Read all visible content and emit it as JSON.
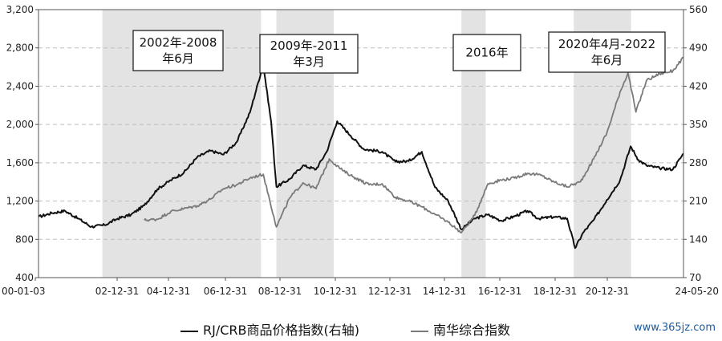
{
  "chart_data": {
    "type": "line",
    "x_tick_labels": [
      "00-01-03",
      "02-12-31",
      "04-12-31",
      "06-12-31",
      "08-12-31",
      "10-12-31",
      "12-12-31",
      "14-12-31",
      "16-12-31",
      "18-12-31",
      "20-12-31",
      "24-05-20"
    ],
    "y_left": {
      "ticks": [
        "400",
        "800",
        "1,200",
        "1,600",
        "2,000",
        "2,400",
        "2,800",
        "3,200"
      ],
      "min": 400,
      "max": 3200
    },
    "y_right": {
      "ticks": [
        "70",
        "140",
        "210",
        "280",
        "350",
        "420",
        "490",
        "560"
      ],
      "min": 70,
      "max": 560
    },
    "shaded_periods": [
      {
        "label": [
          "2002年-2008",
          "年6月"
        ],
        "start": "2002-06",
        "end": "2008-06"
      },
      {
        "label": [
          "2009年-2011",
          "年3月"
        ],
        "start": "2009-01",
        "end": "2011-03"
      },
      {
        "label": [
          "2016年"
        ],
        "start": "2016-01",
        "end": "2016-12"
      },
      {
        "label": [
          "2020年4月-2022",
          "年6月"
        ],
        "start": "2020-04",
        "end": "2022-06"
      }
    ],
    "series": [
      {
        "name": "RJ/CRB商品价格指数(右轴)",
        "axis": "right",
        "color": "#111111",
        "points": [
          [
            2000.0,
            181
          ],
          [
            2000.5,
            188
          ],
          [
            2001.0,
            192
          ],
          [
            2001.5,
            178
          ],
          [
            2002.0,
            163
          ],
          [
            2002.5,
            166
          ],
          [
            2003.0,
            178
          ],
          [
            2003.5,
            185
          ],
          [
            2004.0,
            202
          ],
          [
            2004.5,
            232
          ],
          [
            2005.0,
            248
          ],
          [
            2005.5,
            262
          ],
          [
            2006.0,
            290
          ],
          [
            2006.5,
            302
          ],
          [
            2007.0,
            295
          ],
          [
            2007.5,
            318
          ],
          [
            2008.0,
            372
          ],
          [
            2008.5,
            460
          ],
          [
            2008.8,
            355
          ],
          [
            2009.0,
            236
          ],
          [
            2009.5,
            250
          ],
          [
            2010.0,
            275
          ],
          [
            2010.5,
            268
          ],
          [
            2010.9,
            300
          ],
          [
            2011.3,
            356
          ],
          [
            2011.8,
            330
          ],
          [
            2012.3,
            305
          ],
          [
            2013.0,
            300
          ],
          [
            2013.5,
            282
          ],
          [
            2014.0,
            283
          ],
          [
            2014.5,
            300
          ],
          [
            2015.0,
            235
          ],
          [
            2015.5,
            210
          ],
          [
            2016.0,
            158
          ],
          [
            2016.5,
            178
          ],
          [
            2017.0,
            185
          ],
          [
            2017.5,
            174
          ],
          [
            2018.0,
            182
          ],
          [
            2018.5,
            192
          ],
          [
            2018.9,
            178
          ],
          [
            2019.5,
            181
          ],
          [
            2020.0,
            178
          ],
          [
            2020.3,
            124
          ],
          [
            2020.6,
            152
          ],
          [
            2021.0,
            175
          ],
          [
            2021.5,
            212
          ],
          [
            2022.0,
            248
          ],
          [
            2022.4,
            310
          ],
          [
            2022.7,
            285
          ],
          [
            2023.0,
            275
          ],
          [
            2023.5,
            270
          ],
          [
            2024.0,
            268
          ],
          [
            2024.4,
            297
          ]
        ]
      },
      {
        "name": "南华综合指数",
        "axis": "left",
        "color": "#7a7a7a",
        "points": [
          [
            2004.0,
            1000
          ],
          [
            2004.5,
            1010
          ],
          [
            2005.0,
            1090
          ],
          [
            2005.5,
            1120
          ],
          [
            2006.0,
            1150
          ],
          [
            2006.5,
            1220
          ],
          [
            2007.0,
            1330
          ],
          [
            2007.5,
            1370
          ],
          [
            2008.0,
            1440
          ],
          [
            2008.5,
            1480
          ],
          [
            2008.9,
            1040
          ],
          [
            2009.0,
            930
          ],
          [
            2009.5,
            1230
          ],
          [
            2010.0,
            1390
          ],
          [
            2010.5,
            1330
          ],
          [
            2011.0,
            1640
          ],
          [
            2011.5,
            1520
          ],
          [
            2012.0,
            1440
          ],
          [
            2012.5,
            1370
          ],
          [
            2013.0,
            1380
          ],
          [
            2013.5,
            1240
          ],
          [
            2014.0,
            1200
          ],
          [
            2014.5,
            1140
          ],
          [
            2015.0,
            1060
          ],
          [
            2015.5,
            980
          ],
          [
            2016.0,
            870
          ],
          [
            2016.5,
            1050
          ],
          [
            2017.0,
            1380
          ],
          [
            2017.5,
            1420
          ],
          [
            2018.0,
            1440
          ],
          [
            2018.5,
            1490
          ],
          [
            2019.0,
            1470
          ],
          [
            2019.5,
            1400
          ],
          [
            2020.0,
            1350
          ],
          [
            2020.5,
            1400
          ],
          [
            2021.0,
            1640
          ],
          [
            2021.5,
            1910
          ],
          [
            2022.0,
            2340
          ],
          [
            2022.3,
            2540
          ],
          [
            2022.6,
            2130
          ],
          [
            2023.0,
            2460
          ],
          [
            2023.5,
            2530
          ],
          [
            2024.0,
            2560
          ],
          [
            2024.4,
            2700
          ]
        ]
      }
    ]
  },
  "legend": {
    "series1": "RJ/CRB商品价格指数(右轴)",
    "series2": "南华综合指数"
  },
  "watermark": "www.365jz.com"
}
